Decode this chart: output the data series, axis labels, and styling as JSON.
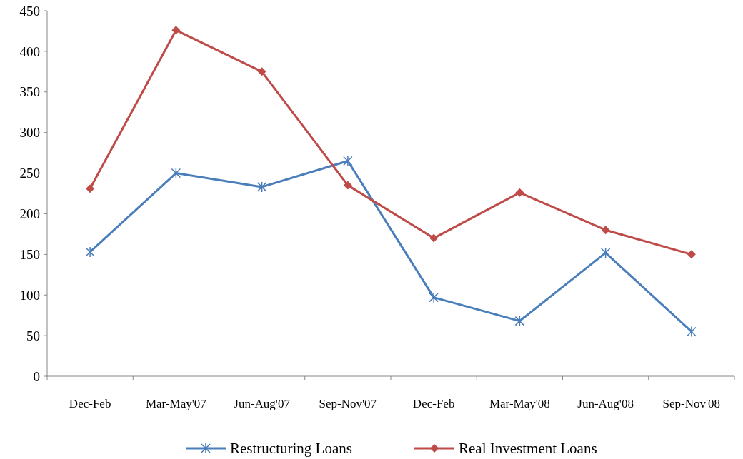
{
  "chart_data": {
    "type": "line",
    "categories": [
      "Dec-Feb",
      "Mar-May'07",
      "Jun-Aug'07",
      "Sep-Nov'07",
      "Dec-Feb",
      "Mar-May'08",
      "Jun-Aug'08",
      "Sep-Nov'08"
    ],
    "series": [
      {
        "name": "Restructuring Loans",
        "color": "#4a7ebb",
        "marker": "cross",
        "values": [
          153,
          250,
          233,
          265,
          97,
          68,
          152,
          55
        ]
      },
      {
        "name": "Real Investment Loans",
        "color": "#be4b48",
        "marker": "diamond",
        "values": [
          231,
          426,
          375,
          235,
          170,
          226,
          180,
          150
        ]
      }
    ],
    "ylim": [
      0,
      450
    ],
    "yticks": [
      0,
      50,
      100,
      150,
      200,
      250,
      300,
      350,
      400,
      450
    ],
    "grid": false,
    "legend": "bottom",
    "line_style": "solid"
  }
}
